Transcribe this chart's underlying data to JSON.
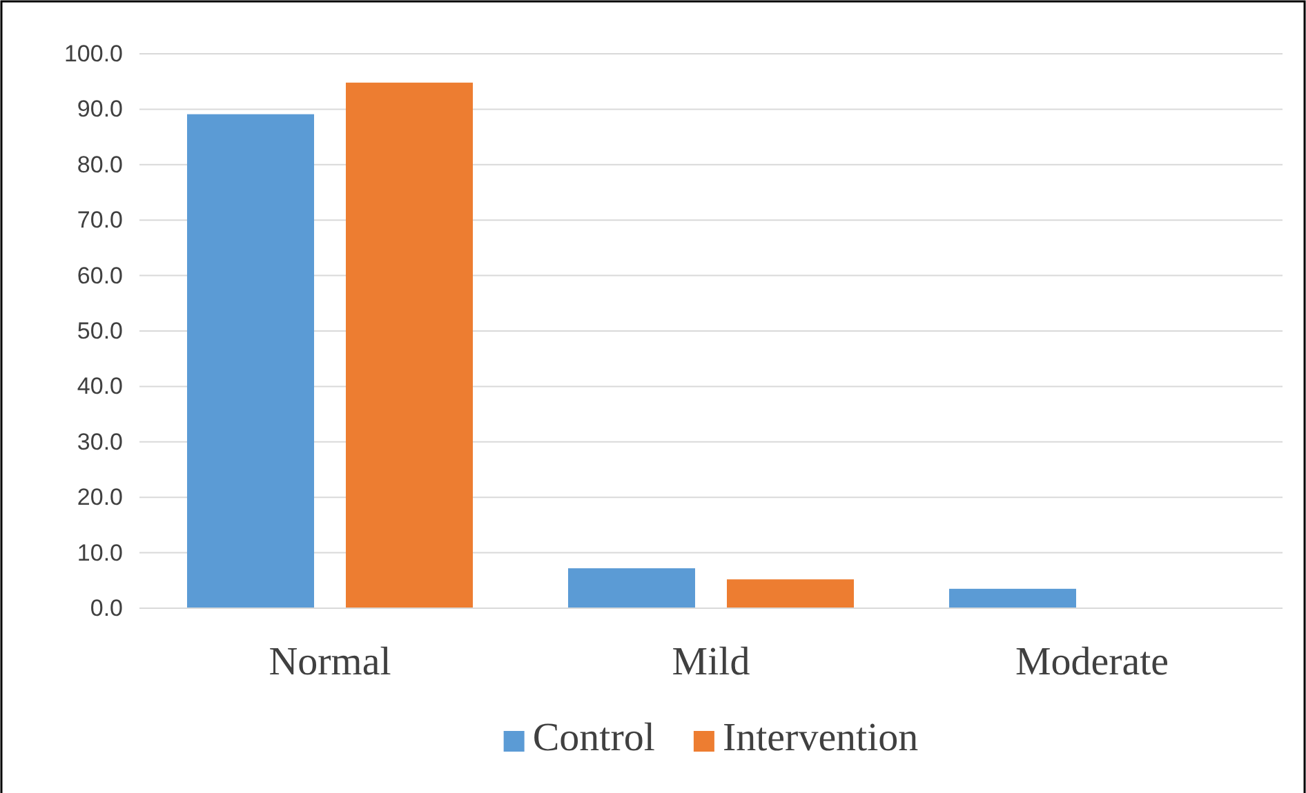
{
  "chart_data": {
    "type": "bar",
    "categories": [
      "Normal",
      "Mild",
      "Moderate"
    ],
    "series": [
      {
        "name": "Control",
        "color": "#5b9bd5",
        "values": [
          89.1,
          7.2,
          3.5
        ]
      },
      {
        "name": "Intervention",
        "color": "#ed7d31",
        "values": [
          94.8,
          5.2,
          0
        ]
      }
    ],
    "ylim": [
      0,
      100
    ],
    "yticks": [
      {
        "value": 0,
        "label": "0.0"
      },
      {
        "value": 10,
        "label": "10.0"
      },
      {
        "value": 20,
        "label": "20.0"
      },
      {
        "value": 30,
        "label": "30.0"
      },
      {
        "value": 40,
        "label": "40.0"
      },
      {
        "value": 50,
        "label": "50.0"
      },
      {
        "value": 60,
        "label": "60.0"
      },
      {
        "value": 70,
        "label": "70.0"
      },
      {
        "value": 80,
        "label": "80.0"
      },
      {
        "value": 90,
        "label": "90.0"
      },
      {
        "value": 100,
        "label": "100.0"
      }
    ],
    "grid": "y",
    "legend": "bottom"
  }
}
